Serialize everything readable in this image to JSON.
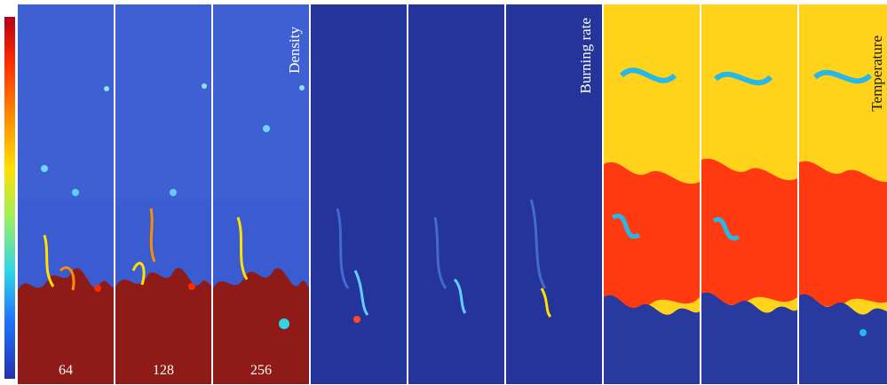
{
  "colorbar": {
    "colors": [
      "#b3001a",
      "#ff2a00",
      "#ff8c00",
      "#ffe000",
      "#9ff05a",
      "#2fd7e6",
      "#1f73ff",
      "#2530b0"
    ]
  },
  "groups": [
    {
      "label": "Density",
      "label_color": "#ffffff",
      "panel_labels": [
        "64",
        "128",
        "256"
      ]
    },
    {
      "label": "Burning rate",
      "label_color": "#ffffff",
      "panel_labels": [
        "",
        "",
        ""
      ]
    },
    {
      "label": "Temperature",
      "label_color": "#1a1a1a",
      "panel_labels": [
        "",
        "",
        ""
      ]
    }
  ],
  "palette": {
    "density_top": "#3f5fcf",
    "density_bottom": "#8b1a16",
    "burning_bg": "#24349a",
    "temp_hot": "#ff3a10",
    "temp_mid": "#ffd21c",
    "temp_cool": "#28b8e8",
    "temp_cold": "#283a9e"
  }
}
